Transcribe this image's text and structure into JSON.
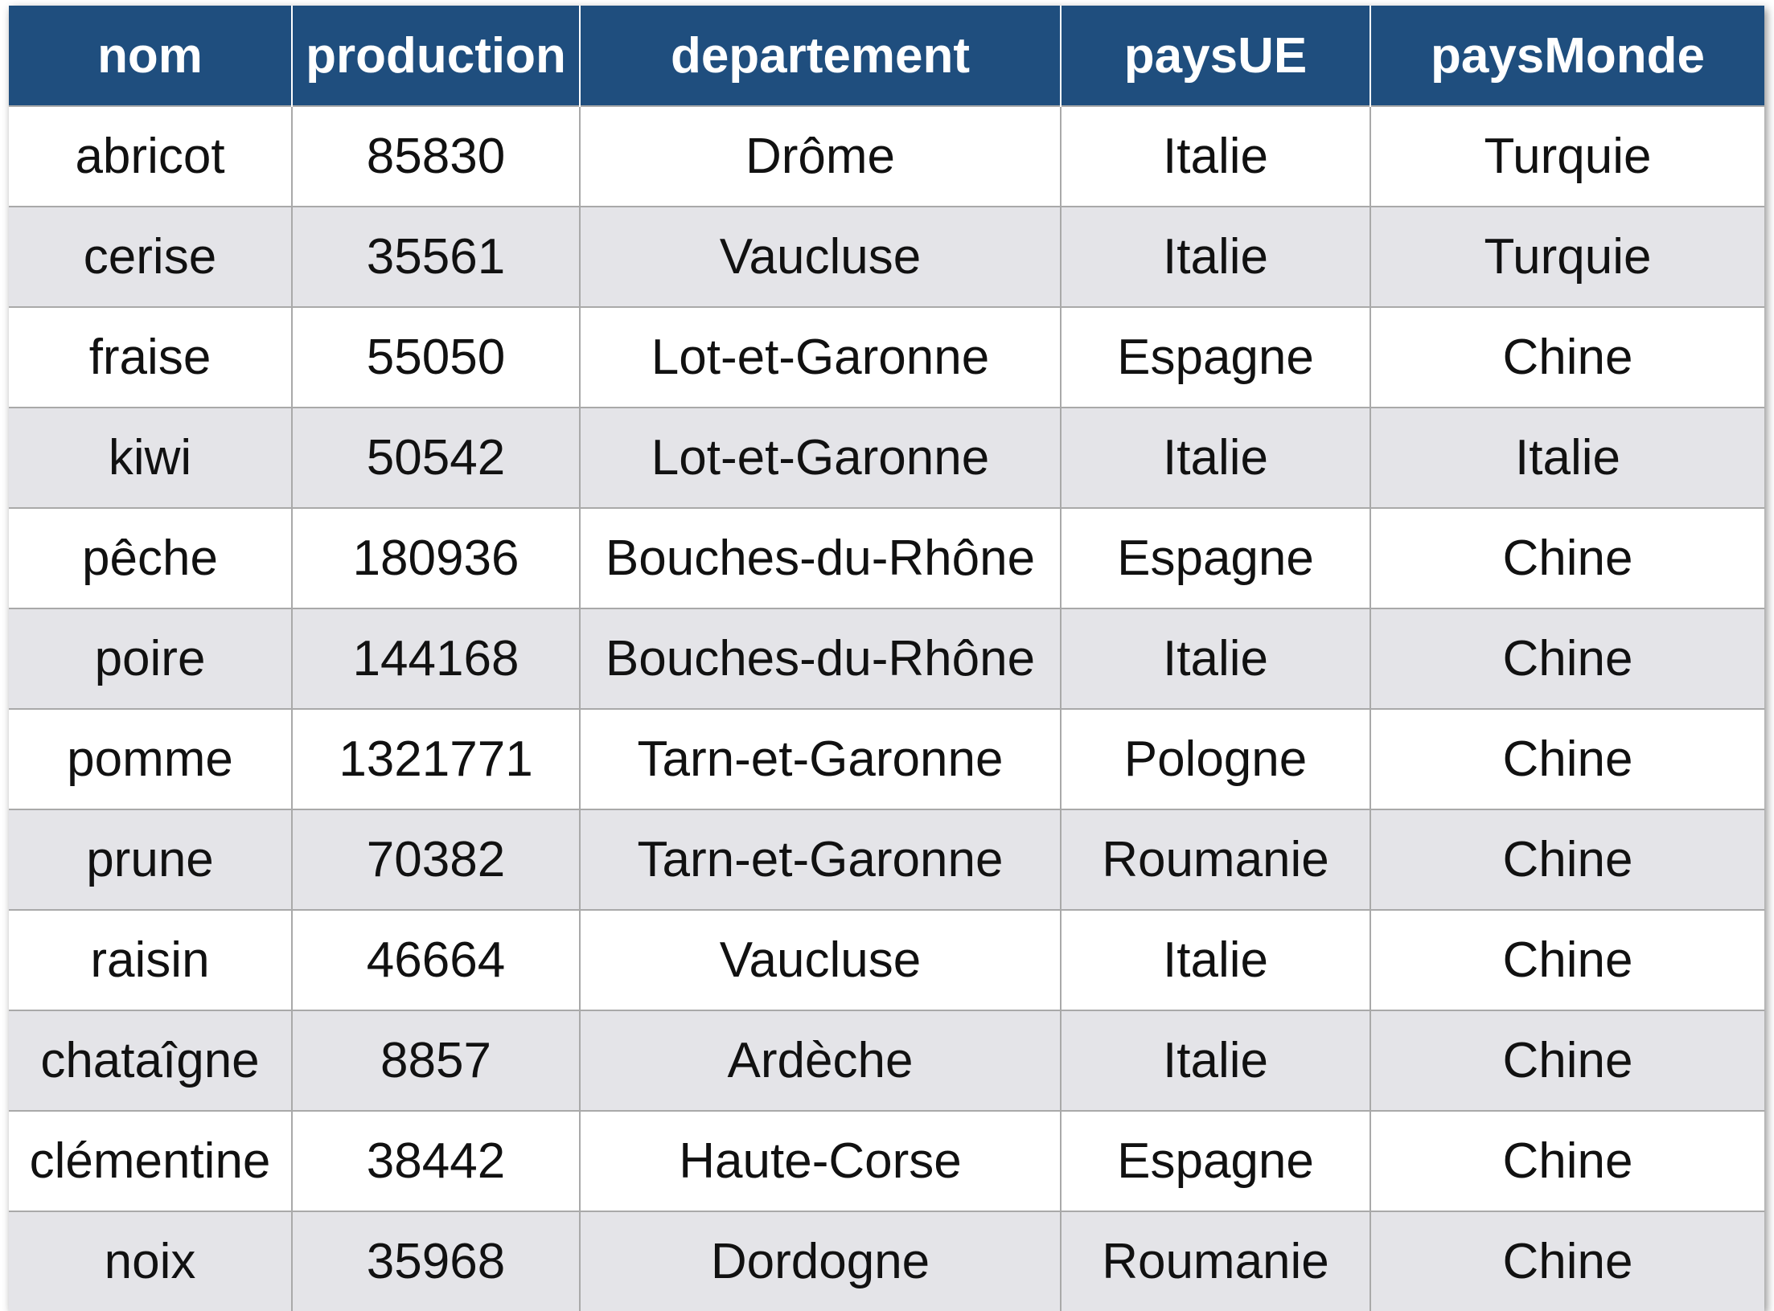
{
  "table": {
    "headers": [
      "nom",
      "production",
      "departement",
      "paysUE",
      "paysMonde"
    ],
    "rows": [
      [
        "abricot",
        "85830",
        "Drôme",
        "Italie",
        "Turquie"
      ],
      [
        "cerise",
        "35561",
        "Vaucluse",
        "Italie",
        "Turquie"
      ],
      [
        "fraise",
        "55050",
        "Lot-et-Garonne",
        "Espagne",
        "Chine"
      ],
      [
        "kiwi",
        "50542",
        "Lot-et-Garonne",
        "Italie",
        "Italie"
      ],
      [
        "pêche",
        "180936",
        "Bouches-du-Rhône",
        "Espagne",
        "Chine"
      ],
      [
        "poire",
        "144168",
        "Bouches-du-Rhône",
        "Italie",
        "Chine"
      ],
      [
        "pomme",
        "1321771",
        "Tarn-et-Garonne",
        "Pologne",
        "Chine"
      ],
      [
        "prune",
        "70382",
        "Tarn-et-Garonne",
        "Roumanie",
        "Chine"
      ],
      [
        "raisin",
        "46664",
        "Vaucluse",
        "Italie",
        "Chine"
      ],
      [
        "chataîgne",
        "8857",
        "Ardèche",
        "Italie",
        "Chine"
      ],
      [
        "clémentine",
        "38442",
        "Haute-Corse",
        "Espagne",
        "Chine"
      ],
      [
        "noix",
        "35968",
        "Dordogne",
        "Roumanie",
        "Chine"
      ]
    ]
  },
  "colors": {
    "header_background": "#1f4e7e",
    "header_text": "#ffffff",
    "row_alt_background": "#e4e4e8",
    "row_background": "#ffffff",
    "grid_line": "#a9a9a9"
  }
}
